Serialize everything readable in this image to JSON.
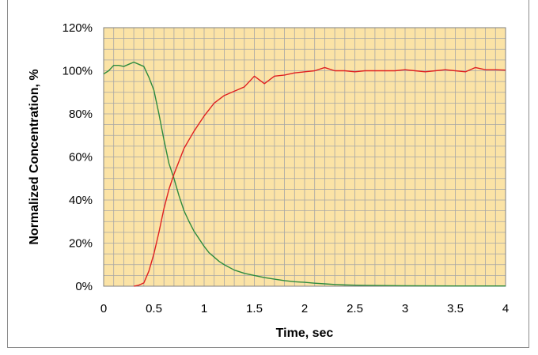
{
  "chart_data": {
    "type": "line",
    "title": "",
    "xlabel": "Time, sec",
    "ylabel": "Normalized Concentration, %",
    "xlim": [
      0,
      4
    ],
    "ylim": [
      0,
      120
    ],
    "x_ticks": [
      "0",
      "0.5",
      "1",
      "1.5",
      "2",
      "2.5",
      "3",
      "3.5",
      "4"
    ],
    "x_tick_values": [
      0,
      0.5,
      1,
      1.5,
      2,
      2.5,
      3,
      3.5,
      4
    ],
    "y_ticks": [
      "0%",
      "20%",
      "40%",
      "60%",
      "80%",
      "100%",
      "120%"
    ],
    "y_tick_values": [
      0,
      20,
      40,
      60,
      80,
      100,
      120
    ],
    "grid": true,
    "plot_background": "#fbe3a6",
    "gridline_color": "#a6a6a6",
    "series": [
      {
        "color": "#2e8b3e",
        "x": [
          0,
          0.05,
          0.1,
          0.15,
          0.2,
          0.25,
          0.3,
          0.35,
          0.4,
          0.45,
          0.5,
          0.55,
          0.6,
          0.65,
          0.7,
          0.75,
          0.8,
          0.85,
          0.9,
          0.95,
          1.0,
          1.05,
          1.1,
          1.15,
          1.2,
          1.3,
          1.4,
          1.5,
          1.6,
          1.7,
          1.8,
          1.9,
          2.0,
          2.1,
          2.2,
          2.3,
          2.4,
          2.5,
          2.6,
          2.8,
          3.0,
          3.5,
          4.0
        ],
        "values": [
          98.5,
          100,
          102.5,
          102.5,
          102,
          103,
          104,
          103,
          102,
          97,
          91,
          80,
          68,
          57,
          50,
          42,
          35,
          30,
          25.5,
          22,
          18.5,
          15.5,
          13.5,
          11.5,
          10,
          7.5,
          6,
          5,
          4,
          3.3,
          2.6,
          2.1,
          1.8,
          1.4,
          1.1,
          0.8,
          0.6,
          0.5,
          0.4,
          0.3,
          0.2,
          0.1,
          0.1
        ]
      },
      {
        "color": "#e02020",
        "x": [
          0.3,
          0.35,
          0.4,
          0.45,
          0.5,
          0.55,
          0.6,
          0.65,
          0.7,
          0.75,
          0.8,
          0.85,
          0.9,
          0.95,
          1.0,
          1.05,
          1.1,
          1.2,
          1.3,
          1.4,
          1.5,
          1.6,
          1.7,
          1.8,
          1.9,
          2.0,
          2.1,
          2.2,
          2.3,
          2.4,
          2.5,
          2.6,
          2.7,
          2.8,
          2.9,
          3.0,
          3.1,
          3.2,
          3.3,
          3.4,
          3.5,
          3.6,
          3.7,
          3.8,
          3.9,
          4.0
        ],
        "values": [
          0,
          0.5,
          1.5,
          7,
          15,
          25,
          36,
          45,
          52,
          58,
          64,
          68,
          72,
          75.5,
          79,
          82,
          85,
          88.5,
          90.5,
          92.5,
          97.5,
          94,
          97.5,
          98,
          99,
          99.5,
          100,
          101.5,
          100,
          100,
          99.5,
          100,
          100,
          100,
          100,
          100.5,
          100,
          99.5,
          100,
          100.5,
          100,
          99.5,
          101.5,
          100.5,
          100.5,
          100.3
        ]
      }
    ]
  }
}
